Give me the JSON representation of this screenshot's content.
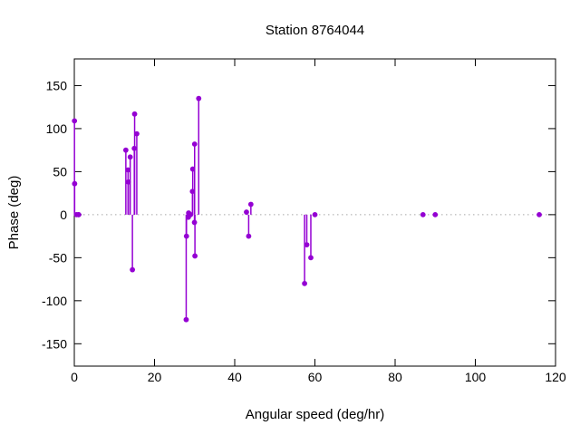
{
  "window": {
    "title": "Station 8764044"
  },
  "colors": {
    "series": "#9400d3",
    "axis": "#000000",
    "zero_line": "#a8a8a8",
    "text": "#000000",
    "background": "#ffffff"
  },
  "chart_data": {
    "type": "scatter",
    "style": "impulses-with-points (stem plot)",
    "title": "Station 8764044",
    "xlabel": "Angular speed (deg/hr)",
    "ylabel": "Phase (deg)",
    "xlim": [
      0,
      120
    ],
    "ylim": [
      -176,
      181
    ],
    "xticks": [
      0,
      20,
      40,
      60,
      80,
      100,
      120
    ],
    "yticks": [
      -150,
      -100,
      -50,
      0,
      50,
      100,
      150
    ],
    "grid": false,
    "zero_line_dotted": true,
    "legend": "none",
    "point_color": "#9400d3",
    "points": [
      [
        0.04,
        109
      ],
      [
        0.08,
        36
      ],
      [
        0.54,
        0
      ],
      [
        1.02,
        0
      ],
      [
        1.1,
        0
      ],
      [
        12.85,
        75
      ],
      [
        13.4,
        52
      ],
      [
        13.47,
        38
      ],
      [
        13.94,
        67
      ],
      [
        14.49,
        -64
      ],
      [
        14.96,
        77
      ],
      [
        15.04,
        117
      ],
      [
        15.58,
        94
      ],
      [
        27.9,
        -122
      ],
      [
        27.97,
        -25
      ],
      [
        28.44,
        -3
      ],
      [
        28.51,
        2
      ],
      [
        28.98,
        0
      ],
      [
        29.46,
        27
      ],
      [
        29.53,
        53
      ],
      [
        29.96,
        -9
      ],
      [
        30.0,
        82
      ],
      [
        30.08,
        -48
      ],
      [
        31.02,
        135
      ],
      [
        42.93,
        3
      ],
      [
        43.48,
        -25
      ],
      [
        44.03,
        12
      ],
      [
        57.42,
        -80
      ],
      [
        57.97,
        -35
      ],
      [
        58.98,
        -50
      ],
      [
        60.0,
        0
      ],
      [
        86.95,
        0
      ],
      [
        90.0,
        0
      ],
      [
        115.94,
        0
      ]
    ]
  }
}
